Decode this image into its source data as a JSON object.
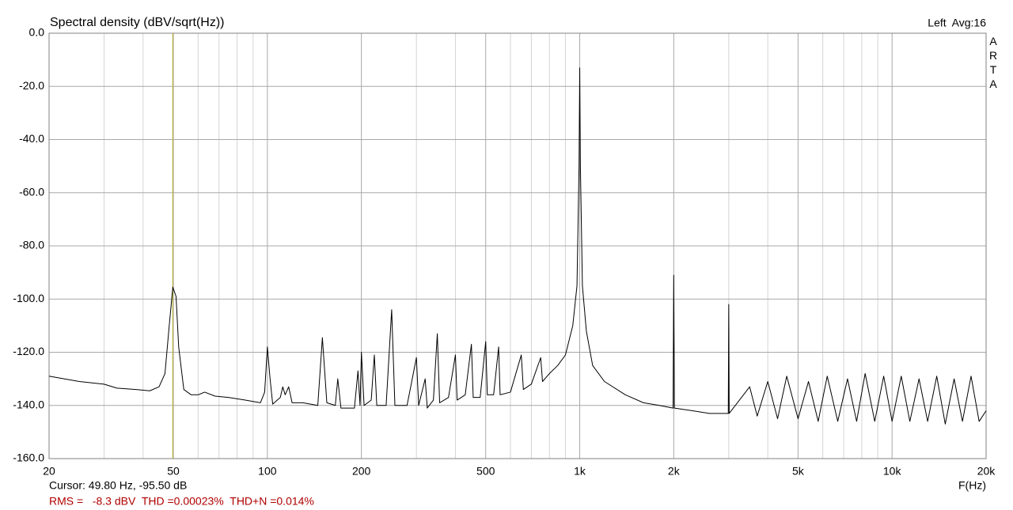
{
  "chart_data": {
    "type": "line",
    "title": "Spectral density (dBV/sqrt(Hz))",
    "status": "Left  Avg:16",
    "brand": "ARTA",
    "xlabel": "F(Hz)",
    "cursor_text": "Cursor: 49.80 Hz, -95.50 dB",
    "summary": "RMS =   -8.3 dBV  THD =0.00023%  THD+N =0.014%",
    "cursor_x": 49.8,
    "cursor_color": "#b5b33c",
    "xscale": "log",
    "grid": true,
    "xlim": [
      20,
      20000
    ],
    "ylim": [
      -160,
      0
    ],
    "xticks": [
      20,
      50,
      100,
      200,
      500,
      {
        "value": 1000,
        "label": "1k"
      },
      {
        "value": 2000,
        "label": "2k"
      },
      {
        "value": 5000,
        "label": "5k"
      },
      {
        "value": 10000,
        "label": "10k"
      },
      {
        "value": 20000,
        "label": "20k"
      }
    ],
    "xminor": [
      30,
      40,
      60,
      70,
      80,
      90,
      300,
      400,
      600,
      700,
      800,
      900,
      3000,
      4000,
      6000,
      7000,
      8000,
      9000
    ],
    "yticks": [
      {
        "value": 0,
        "label": "0.0"
      },
      {
        "value": -20,
        "label": "-20.0"
      },
      {
        "value": -40,
        "label": "-40.0"
      },
      {
        "value": -60,
        "label": "-60.0"
      },
      {
        "value": -80,
        "label": "-80.0"
      },
      {
        "value": -100,
        "label": "-100.0"
      },
      {
        "value": -120,
        "label": "-120.0"
      },
      {
        "value": -140,
        "label": "-140.0"
      },
      {
        "value": -160,
        "label": "-160.0"
      }
    ],
    "series": [
      {
        "color": "#000000",
        "x": [
          20,
          25,
          30,
          33,
          38,
          42,
          45,
          47,
          48.5,
          49.8,
          51,
          52,
          54,
          57,
          60,
          63,
          68,
          75,
          85,
          95,
          98,
          100,
          102,
          104,
          110,
          112,
          114,
          117,
          120,
          130,
          145,
          150,
          155,
          165,
          168,
          172,
          190,
          195,
          198,
          200,
          204,
          215,
          220,
          224,
          240,
          250,
          256,
          280,
          300,
          305,
          320,
          325,
          340,
          350,
          356,
          380,
          400,
          405,
          430,
          450,
          456,
          480,
          500,
          506,
          530,
          550,
          556,
          600,
          650,
          660,
          700,
          750,
          760,
          800,
          850,
          900,
          950,
          980,
          995,
          1000,
          1005,
          1020,
          1050,
          1100,
          1200,
          1400,
          1600,
          1800,
          1990,
          2000,
          2010,
          2300,
          2600,
          2990,
          3000,
          3010,
          3500,
          3700,
          4000,
          4300,
          4600,
          5000,
          5400,
          5800,
          6200,
          6700,
          7200,
          7700,
          8200,
          8800,
          9400,
          10000,
          10700,
          11400,
          12200,
          13000,
          13900,
          14800,
          15800,
          16800,
          17900,
          19000,
          20000
        ],
        "values": [
          -129,
          -131,
          -132,
          -133.5,
          -134,
          -134.5,
          -133,
          -128,
          -110,
          -95.5,
          -99,
          -118,
          -134,
          -136,
          -136,
          -135,
          -136.5,
          -137,
          -138,
          -139,
          -135,
          -118,
          -130,
          -139.5,
          -137,
          -133,
          -136,
          -133,
          -139,
          -139,
          -140,
          -114.5,
          -139,
          -140,
          -130,
          -141,
          -141,
          -127,
          -140,
          -120,
          -140,
          -138,
          -121,
          -140,
          -140,
          -104,
          -140,
          -140,
          -122,
          -140,
          -130,
          -141,
          -138,
          -113,
          -139,
          -137,
          -121,
          -138,
          -136,
          -117,
          -137,
          -137,
          -116,
          -136,
          -136,
          -118,
          -136,
          -135,
          -121,
          -134,
          -132,
          -122,
          -131,
          -128,
          -125,
          -121,
          -110,
          -95,
          -50,
          -13,
          -50,
          -95,
          -112,
          -125,
          -131,
          -136,
          -139,
          -140,
          -141,
          -91,
          -141,
          -142,
          -143,
          -143,
          -102,
          -143,
          -133,
          -144,
          -131,
          -145,
          -129,
          -145,
          -131,
          -146,
          -129,
          -146,
          -130,
          -146,
          -128,
          -146,
          -129,
          -146,
          -129,
          -146,
          -130,
          -146,
          -129,
          -147,
          -130,
          -146,
          -129,
          -146,
          -142
        ]
      }
    ]
  }
}
